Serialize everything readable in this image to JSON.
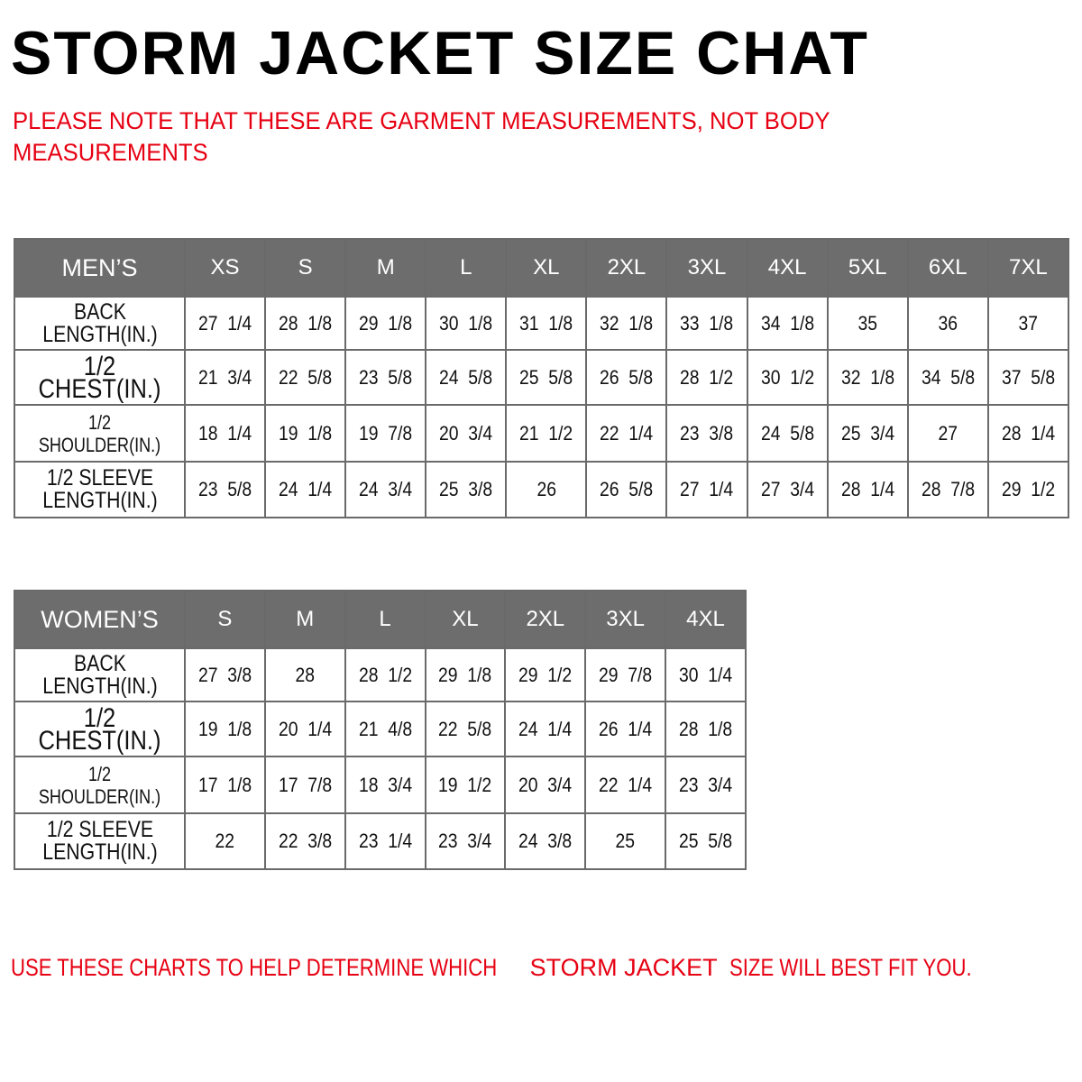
{
  "title": "STORM JACKET SIZE CHAT",
  "note": "PLEASE NOTE THAT THESE ARE GARMENT MEASUREMENTS, NOT BODY MEASUREMENTS",
  "colors": {
    "header_bg": "#6d6d6d",
    "accent_red": "#e60012"
  },
  "mens": {
    "corner": "MEN’S",
    "sizes": [
      "XS",
      "S",
      "M",
      "L",
      "XL",
      "2XL",
      "3XL",
      "4XL",
      "5XL",
      "6XL",
      "7XL"
    ],
    "rows": [
      {
        "label": "BACK\nLENGTH(IN.)",
        "values": [
          "27 1/4",
          "28 1/8",
          "29 1/8",
          "30 1/8",
          "31 1/8",
          "32 1/8",
          "33 1/8",
          "34 1/8",
          "35",
          "36",
          "37"
        ]
      },
      {
        "label": "1/2 CHEST(IN.)",
        "values": [
          "21 3/4",
          "22 5/8",
          "23 5/8",
          "24 5/8",
          "25 5/8",
          "26 5/8",
          "28 1/2",
          "30 1/2",
          "32 1/8",
          "34 5/8",
          "37 5/8"
        ]
      },
      {
        "label": "1/2 SHOULDER(IN.)",
        "values": [
          "18 1/4",
          "19 1/8",
          "19 7/8",
          "20 3/4",
          "21 1/2",
          "22 1/4",
          "23 3/8",
          "24 5/8",
          "25 3/4",
          "27",
          "28 1/4"
        ]
      },
      {
        "label": "1/2 SLEEVE\nLENGTH(IN.)",
        "values": [
          "23 5/8",
          "24 1/4",
          "24 3/4",
          "25 3/8",
          "26",
          "26 5/8",
          "27 1/4",
          "27 3/4",
          "28 1/4",
          "28 7/8",
          "29 1/2"
        ]
      }
    ]
  },
  "womens": {
    "corner": "WOMEN’S",
    "sizes": [
      "S",
      "M",
      "L",
      "XL",
      "2XL",
      "3XL",
      "4XL"
    ],
    "rows": [
      {
        "label": "BACK\nLENGTH(IN.)",
        "values": [
          "27 3/8",
          "28",
          "28 1/2",
          "29 1/8",
          "29 1/2",
          "29 7/8",
          "30 1/4"
        ]
      },
      {
        "label": "1/2 CHEST(IN.)",
        "values": [
          "19 1/8",
          "20 1/4",
          "21 4/8",
          "22 5/8",
          "24 1/4",
          "26 1/4",
          "28 1/8"
        ]
      },
      {
        "label": "1/2 SHOULDER(IN.)",
        "values": [
          "17 1/8",
          "17 7/8",
          "18 3/4",
          "19 1/2",
          "20 3/4",
          "22 1/4",
          "23 3/4"
        ]
      },
      {
        "label": "1/2 SLEEVE\nLENGTH(IN.)",
        "values": [
          "22",
          "22 3/8",
          "23 1/4",
          "23 3/4",
          "24 3/8",
          "25",
          "25 5/8"
        ]
      }
    ]
  },
  "footer": {
    "part1": "USE THESE CHARTS TO HELP DETERMINE WHICH",
    "part2": "STORM JACKET",
    "part3": "SIZE WILL BEST FIT YOU."
  }
}
